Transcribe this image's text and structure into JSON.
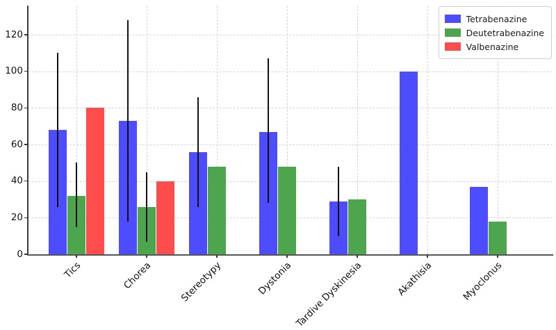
{
  "chart_data": {
    "type": "bar",
    "title": "",
    "xlabel": "",
    "ylabel": "",
    "categories": [
      "Tics",
      "Chorea",
      "Stereotypy",
      "Dystonia",
      "Tardive Dyskinesia",
      "Akathisia",
      "Myoclonus"
    ],
    "series": [
      {
        "name": "Tetrabenazine",
        "color": "#4d4dff",
        "values": [
          68,
          73,
          56,
          67,
          29,
          100,
          37
        ],
        "error_ranges": [
          [
            26,
            110
          ],
          [
            18,
            128
          ],
          [
            26,
            86
          ],
          [
            28,
            107
          ],
          [
            10,
            48
          ],
          null,
          null
        ]
      },
      {
        "name": "Deutetrabenazine",
        "color": "#4da64d",
        "values": [
          32,
          26,
          48,
          48,
          30,
          null,
          18
        ],
        "error_ranges": [
          [
            15,
            50
          ],
          [
            7,
            45
          ],
          null,
          null,
          null,
          null,
          null
        ]
      },
      {
        "name": "Valbenazine",
        "color": "#ff4d4d",
        "values": [
          80,
          40,
          null,
          null,
          null,
          null,
          null
        ],
        "error_ranges": [
          null,
          null,
          null,
          null,
          null,
          null,
          null
        ]
      }
    ],
    "yticks": [
      0,
      20,
      40,
      60,
      80,
      100,
      120
    ],
    "ylim": [
      0,
      136
    ],
    "grid": true,
    "grid_style": "dashed",
    "legend_position": "upper right",
    "error_bar_color": "#111111",
    "background_color": "#ffffff"
  }
}
